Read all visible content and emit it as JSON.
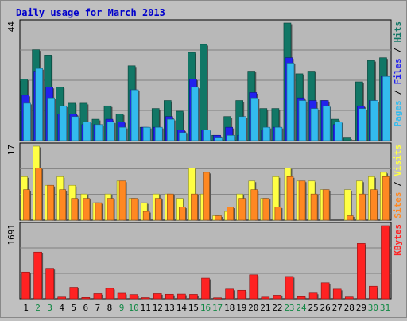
{
  "chart_data": {
    "type": "bar",
    "title": "Daily usage for March 2013",
    "colors": {
      "background": "#c0c0c0",
      "plot_bg": "#b8b8b8",
      "title": "#0000cc",
      "hits": "#117766",
      "files": "#2222ee",
      "pages": "#33bbee",
      "visits": "#ffff44",
      "sites": "#ff8822",
      "kbytes": "#ff2222",
      "weekend": "#118844"
    },
    "categories": [
      "1",
      "2",
      "3",
      "4",
      "5",
      "6",
      "7",
      "8",
      "9",
      "10",
      "11",
      "12",
      "13",
      "14",
      "15",
      "16",
      "17",
      "18",
      "19",
      "20",
      "21",
      "22",
      "23",
      "24",
      "25",
      "26",
      "27",
      "28",
      "29",
      "30",
      "31"
    ],
    "weekend_days": [
      "2",
      "3",
      "9",
      "10",
      "16",
      "17",
      "23",
      "24",
      "30",
      "31"
    ],
    "panels": [
      {
        "id": "hits-panel",
        "ymax_label": "44",
        "ylim": [
          0,
          44
        ],
        "legend": [
          "Pages",
          "Files",
          "Hits"
        ],
        "series": [
          {
            "name": "Hits",
            "values": [
              23,
              34,
              32,
              20,
              14,
              14,
              8,
              13,
              10,
              28,
              5,
              12,
              15,
              11,
              33,
              36,
              2,
              9,
              15,
              26,
              12,
              12,
              44,
              25,
              26,
              15,
              8,
              1,
              22,
              30,
              31
            ]
          },
          {
            "name": "Files",
            "values": [
              17,
              26,
              20,
              10,
              10,
              6,
              6,
              8,
              7,
              19,
              5,
              5,
              9,
              4,
              23,
              4,
              2,
              5,
              2,
              18,
              4,
              5,
              31,
              16,
              15,
              15,
              6,
              0,
              13,
              15,
              24
            ]
          },
          {
            "name": "Pages",
            "values": [
              14,
              27,
              16,
              13,
              9,
              7,
              6,
              7,
              5,
              19,
              5,
              5,
              8,
              3,
              20,
              4,
              1,
              2,
              9,
              16,
              5,
              5,
              29,
              15,
              12,
              13,
              7,
              0,
              12,
              15,
              24
            ]
          }
        ]
      },
      {
        "id": "visits-panel",
        "ymax_label": "17",
        "ylim": [
          0,
          17
        ],
        "legend": [
          "Sites",
          "Visits"
        ],
        "series": [
          {
            "name": "Visits",
            "values": [
              10,
              17,
              8,
              10,
              8,
              6,
              4,
              6,
              9,
              5,
              4,
              6,
              6,
              5,
              12,
              6,
              1,
              2,
              6,
              9,
              5,
              10,
              12,
              9,
              9,
              7,
              0,
              7,
              9,
              10,
              11
            ]
          },
          {
            "name": "Sites",
            "values": [
              7,
              12,
              8,
              7,
              5,
              5,
              4,
              5,
              9,
              5,
              2,
              5,
              6,
              3,
              6,
              11,
              1,
              3,
              5,
              7,
              5,
              3,
              10,
              9,
              6,
              7,
              0,
              1,
              6,
              7,
              10
            ]
          }
        ]
      },
      {
        "id": "kbytes-panel",
        "ymax_label": "1691",
        "ylim": [
          0,
          1691
        ],
        "legend": [
          "KBytes"
        ],
        "series": [
          {
            "name": "KBytes",
            "values": [
              620,
              1080,
              704,
              41,
              266,
              31,
              120,
              241,
              129,
              98,
              27,
              120,
              105,
              109,
              102,
              477,
              23,
              224,
              197,
              555,
              40,
              84,
              516,
              50,
              133,
              371,
              223,
              42,
              1280,
              290,
              1691
            ]
          }
        ]
      }
    ]
  }
}
